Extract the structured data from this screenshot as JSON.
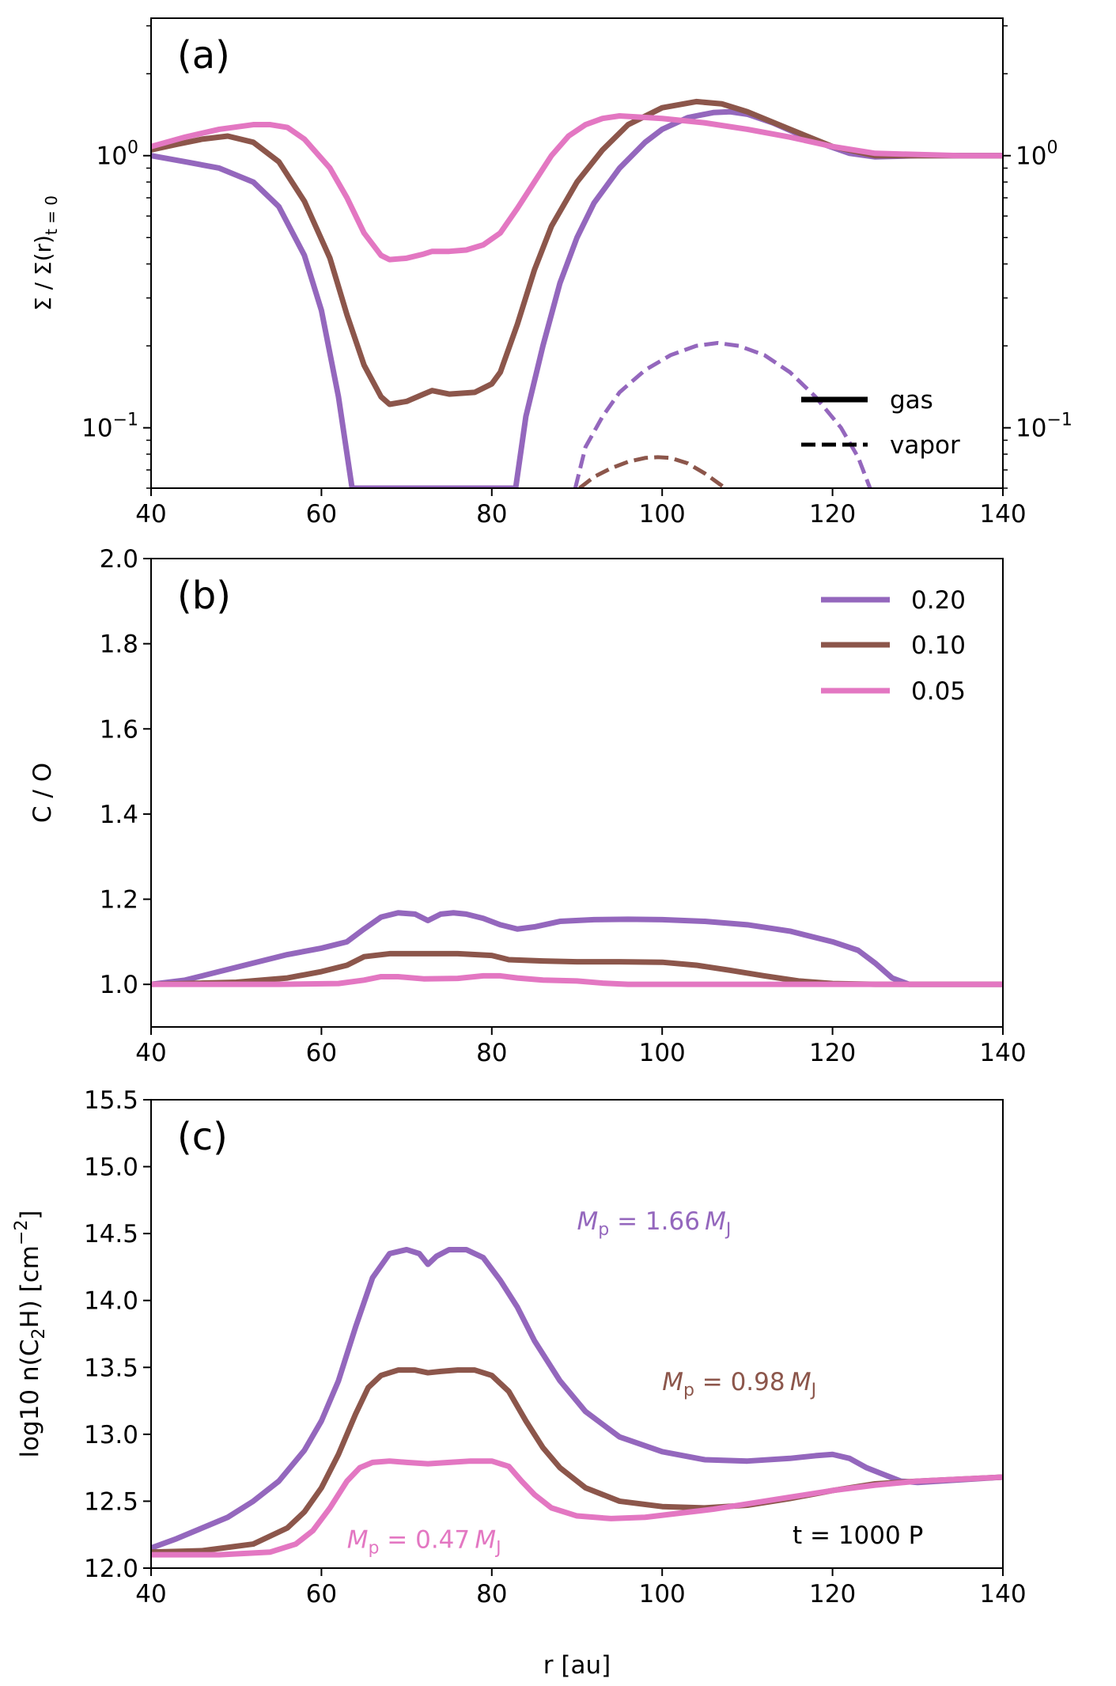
{
  "colors": {
    "purple": "#9467bd",
    "brown": "#8c564b",
    "pink": "#e377c2",
    "axis": "#000000"
  },
  "chart_data": [
    {
      "panel_label": "(a)",
      "type": "line",
      "ylabel": "Σ / Σ(r)",
      "ylabel_sub": "t = 0",
      "xlim": [
        40,
        140
      ],
      "ylim": [
        0.06,
        3.2
      ],
      "yscale": "log",
      "xticks": [
        "40",
        "60",
        "80",
        "100",
        "120",
        "140"
      ],
      "yticks": [
        {
          "value": 1.0,
          "label": "10",
          "exp": "0"
        },
        {
          "value": 0.1,
          "label": "10",
          "exp": "−1"
        }
      ],
      "right_yticks": true,
      "legend": {
        "position": "lower-right",
        "entries": [
          {
            "label": "gas",
            "style": "solid"
          },
          {
            "label": "vapor",
            "style": "dashed"
          }
        ]
      },
      "series": [
        {
          "color_key": "purple",
          "style": "solid",
          "x": [
            40,
            44,
            48,
            52,
            55,
            58,
            60,
            62,
            63.6,
            82.8,
            84,
            86,
            88,
            90,
            92,
            95,
            98,
            100,
            103,
            106,
            108,
            110,
            113,
            116,
            119,
            122,
            125,
            130,
            135,
            140
          ],
          "y": [
            1.0,
            0.95,
            0.9,
            0.8,
            0.65,
            0.43,
            0.27,
            0.13,
            0.06,
            0.06,
            0.11,
            0.2,
            0.34,
            0.5,
            0.67,
            0.9,
            1.12,
            1.25,
            1.38,
            1.44,
            1.45,
            1.42,
            1.32,
            1.2,
            1.1,
            1.02,
            0.99,
            1.0,
            1.0,
            1.0
          ]
        },
        {
          "color_key": "brown",
          "style": "solid",
          "x": [
            40,
            43,
            46,
            49,
            52,
            55,
            58,
            61,
            63,
            65,
            67,
            68,
            70,
            72,
            73,
            75,
            78,
            80,
            81,
            83,
            85,
            87,
            90,
            93,
            96,
            100,
            104,
            107,
            110,
            115,
            120,
            125,
            130,
            140
          ],
          "y": [
            1.05,
            1.1,
            1.15,
            1.18,
            1.12,
            0.95,
            0.68,
            0.42,
            0.26,
            0.17,
            0.13,
            0.122,
            0.125,
            0.133,
            0.137,
            0.133,
            0.135,
            0.145,
            0.16,
            0.24,
            0.38,
            0.55,
            0.8,
            1.05,
            1.3,
            1.5,
            1.58,
            1.55,
            1.45,
            1.25,
            1.08,
            1.0,
            1.0,
            1.0
          ]
        },
        {
          "color_key": "pink",
          "style": "solid",
          "x": [
            40,
            44,
            48,
            52,
            54,
            56,
            58,
            61,
            63,
            65,
            67,
            68,
            70,
            72,
            73,
            75,
            77,
            79,
            81,
            83,
            85,
            87,
            89,
            91,
            93,
            95,
            100,
            105,
            110,
            115,
            120,
            125,
            130,
            135,
            140
          ],
          "y": [
            1.08,
            1.17,
            1.25,
            1.3,
            1.3,
            1.27,
            1.15,
            0.9,
            0.7,
            0.52,
            0.43,
            0.415,
            0.42,
            0.435,
            0.445,
            0.445,
            0.45,
            0.47,
            0.52,
            0.64,
            0.8,
            1.0,
            1.18,
            1.3,
            1.37,
            1.4,
            1.37,
            1.32,
            1.25,
            1.17,
            1.08,
            1.02,
            1.01,
            1.0,
            1.0
          ]
        },
        {
          "color_key": "purple",
          "style": "dashed",
          "x": [
            89.8,
            91,
            93,
            95,
            98,
            101,
            104,
            106.5,
            109,
            112,
            115,
            118,
            121,
            123,
            124.4
          ],
          "y": [
            0.06,
            0.085,
            0.11,
            0.135,
            0.163,
            0.185,
            0.2,
            0.205,
            0.2,
            0.185,
            0.16,
            0.13,
            0.1,
            0.078,
            0.06
          ]
        },
        {
          "color_key": "brown",
          "style": "dashed",
          "x": [
            90.3,
            92,
            94,
            96,
            98,
            99.5,
            101,
            103,
            105,
            107.4
          ],
          "y": [
            0.06,
            0.066,
            0.071,
            0.075,
            0.0775,
            0.078,
            0.0775,
            0.074,
            0.068,
            0.06
          ]
        }
      ]
    },
    {
      "panel_label": "(b)",
      "type": "line",
      "ylabel": "C / O",
      "xlim": [
        40,
        140
      ],
      "ylim": [
        0.9,
        2.0
      ],
      "xticks": [
        "40",
        "60",
        "80",
        "100",
        "120",
        "140"
      ],
      "yticks": [
        {
          "value": 1.0,
          "label": "1.0"
        },
        {
          "value": 1.2,
          "label": "1.2"
        },
        {
          "value": 1.4,
          "label": "1.4"
        },
        {
          "value": 1.6,
          "label": "1.6"
        },
        {
          "value": 1.8,
          "label": "1.8"
        },
        {
          "value": 2.0,
          "label": "2.0"
        }
      ],
      "legend": {
        "position": "upper-right",
        "entries": [
          {
            "label": "0.20",
            "color_key": "purple"
          },
          {
            "label": "0.10",
            "color_key": "brown"
          },
          {
            "label": "0.05",
            "color_key": "pink"
          }
        ]
      },
      "series": [
        {
          "color_key": "purple",
          "style": "solid",
          "x": [
            40,
            44,
            48,
            52,
            56,
            60,
            63,
            65,
            67,
            69,
            71,
            72.5,
            74,
            75.5,
            77,
            79,
            81,
            83,
            85,
            88,
            92,
            96,
            100,
            105,
            110,
            115,
            120,
            123,
            125,
            127,
            129,
            132,
            140
          ],
          "y": [
            1.0,
            1.01,
            1.03,
            1.05,
            1.07,
            1.085,
            1.1,
            1.13,
            1.158,
            1.168,
            1.165,
            1.15,
            1.165,
            1.168,
            1.165,
            1.155,
            1.14,
            1.13,
            1.135,
            1.148,
            1.152,
            1.153,
            1.152,
            1.148,
            1.14,
            1.125,
            1.1,
            1.08,
            1.05,
            1.015,
            1.0,
            1.0,
            1.0
          ]
        },
        {
          "color_key": "brown",
          "style": "solid",
          "x": [
            40,
            50,
            56,
            60,
            63,
            65,
            68,
            72,
            76,
            80,
            82,
            86,
            90,
            95,
            100,
            104,
            108,
            112,
            116,
            120,
            125,
            130,
            140
          ],
          "y": [
            1.0,
            1.005,
            1.015,
            1.03,
            1.045,
            1.065,
            1.072,
            1.072,
            1.072,
            1.068,
            1.058,
            1.055,
            1.053,
            1.053,
            1.052,
            1.045,
            1.033,
            1.02,
            1.008,
            1.002,
            1.0,
            1.0,
            1.0
          ]
        },
        {
          "color_key": "pink",
          "style": "solid",
          "x": [
            40,
            55,
            62,
            65,
            67,
            69,
            72,
            76,
            79,
            81,
            83,
            86,
            90,
            93,
            96,
            100,
            120,
            140
          ],
          "y": [
            1.0,
            1.0,
            1.002,
            1.01,
            1.018,
            1.018,
            1.013,
            1.014,
            1.02,
            1.02,
            1.015,
            1.01,
            1.008,
            1.003,
            1.0,
            1.0,
            1.0,
            1.0
          ]
        }
      ]
    },
    {
      "panel_label": "(c)",
      "type": "line",
      "ylabel": "log10 n(C",
      "ylabel_sub": "2",
      "ylabel_mid": "H) [cm",
      "ylabel_sup": "−2",
      "ylabel_end": "]",
      "xlabel": "r [au]",
      "xlim": [
        40,
        140
      ],
      "ylim": [
        12.0,
        15.5
      ],
      "xticks": [
        "40",
        "60",
        "80",
        "100",
        "120",
        "140"
      ],
      "yticks": [
        {
          "value": 12.0,
          "label": "12.0"
        },
        {
          "value": 12.5,
          "label": "12.5"
        },
        {
          "value": 13.0,
          "label": "13.0"
        },
        {
          "value": 13.5,
          "label": "13.5"
        },
        {
          "value": 14.0,
          "label": "14.0"
        },
        {
          "value": 14.5,
          "label": "14.5"
        },
        {
          "value": 15.0,
          "label": "15.0"
        },
        {
          "value": 15.5,
          "label": "15.5"
        }
      ],
      "annotations": [
        {
          "text": "t = 1000 P",
          "color_key": "axis"
        }
      ],
      "mass_labels": [
        {
          "value": "1.66",
          "color_key": "purple",
          "x": 90,
          "y": 14.53
        },
        {
          "value": "0.98",
          "color_key": "brown",
          "x": 100,
          "y": 13.33
        },
        {
          "value": "0.47",
          "color_key": "pink",
          "x": 63,
          "y": 12.15
        }
      ],
      "mass_label_parts": {
        "symbol": "M",
        "sub": "p",
        "equals": " = ",
        "unit": "M",
        "unit_sub": "J"
      },
      "series": [
        {
          "color_key": "purple",
          "style": "solid",
          "x": [
            40,
            43,
            46,
            49,
            52,
            55,
            58,
            60,
            62,
            64,
            66,
            68,
            70,
            71.5,
            72.5,
            73.5,
            75,
            77,
            79,
            81,
            83,
            85,
            88,
            91,
            95,
            100,
            105,
            110,
            115,
            118,
            120,
            122,
            124,
            126,
            128,
            130,
            135,
            140
          ],
          "y": [
            12.15,
            12.22,
            12.3,
            12.38,
            12.5,
            12.65,
            12.88,
            13.1,
            13.4,
            13.8,
            14.17,
            14.35,
            14.38,
            14.35,
            14.27,
            14.33,
            14.38,
            14.38,
            14.32,
            14.15,
            13.95,
            13.7,
            13.4,
            13.17,
            12.98,
            12.87,
            12.81,
            12.8,
            12.82,
            12.84,
            12.85,
            12.82,
            12.75,
            12.7,
            12.65,
            12.64,
            12.66,
            12.68
          ]
        },
        {
          "color_key": "brown",
          "style": "solid",
          "x": [
            40,
            46,
            52,
            56,
            58,
            60,
            62,
            64,
            65.5,
            67,
            69,
            71,
            72.5,
            74,
            76,
            78,
            80,
            82,
            84,
            86,
            88,
            91,
            95,
            100,
            105,
            110,
            115,
            120,
            125,
            130,
            140
          ],
          "y": [
            12.12,
            12.13,
            12.18,
            12.3,
            12.42,
            12.6,
            12.85,
            13.15,
            13.35,
            13.44,
            13.48,
            13.48,
            13.46,
            13.47,
            13.48,
            13.48,
            13.44,
            13.32,
            13.1,
            12.9,
            12.75,
            12.6,
            12.5,
            12.46,
            12.45,
            12.47,
            12.52,
            12.58,
            12.63,
            12.65,
            12.68
          ]
        },
        {
          "color_key": "pink",
          "style": "solid",
          "x": [
            40,
            48,
            54,
            57,
            59,
            61,
            63,
            64.5,
            66,
            68,
            70,
            72.5,
            75,
            77.5,
            80,
            82,
            83.5,
            85,
            87,
            90,
            94,
            98,
            102,
            106,
            110,
            115,
            120,
            125,
            130,
            140
          ],
          "y": [
            12.1,
            12.1,
            12.12,
            12.18,
            12.28,
            12.45,
            12.65,
            12.75,
            12.79,
            12.8,
            12.79,
            12.78,
            12.79,
            12.8,
            12.8,
            12.76,
            12.65,
            12.55,
            12.45,
            12.39,
            12.37,
            12.38,
            12.41,
            12.44,
            12.48,
            12.53,
            12.58,
            12.62,
            12.65,
            12.68
          ]
        }
      ]
    }
  ]
}
